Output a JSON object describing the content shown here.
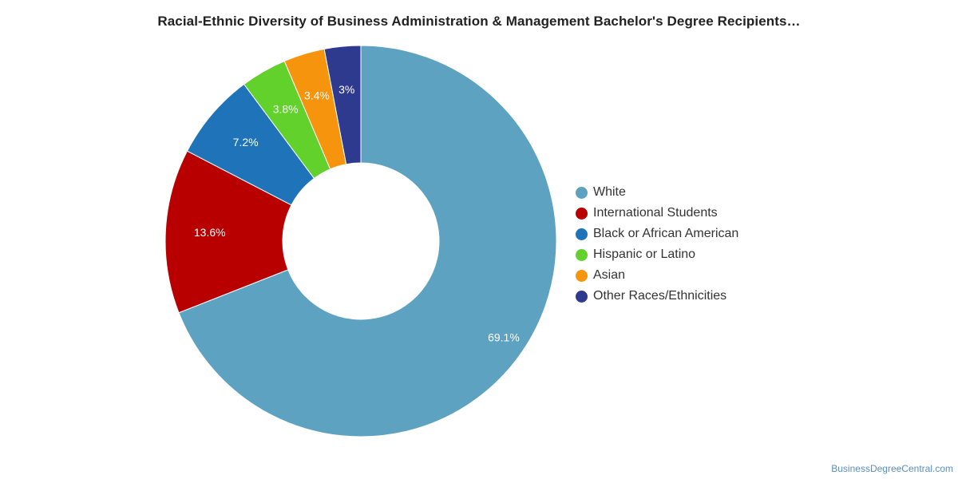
{
  "chart_data": {
    "type": "pie",
    "donut": true,
    "title": "Racial-Ethnic Diversity of Business Administration & Management Bachelor's Degree Recipients…",
    "slices": [
      {
        "label": "White",
        "value": 69.1,
        "display": "69.1%",
        "color": "#5ea2c1"
      },
      {
        "label": "International Students",
        "value": 13.6,
        "display": "13.6%",
        "color": "#b90000"
      },
      {
        "label": "Black or African American",
        "value": 7.2,
        "display": "7.2%",
        "color": "#1f73b8"
      },
      {
        "label": "Hispanic or Latino",
        "value": 3.8,
        "display": "3.8%",
        "color": "#63d12c"
      },
      {
        "label": "Asian",
        "value": 3.4,
        "display": "3.4%",
        "color": "#f7940e"
      },
      {
        "label": "Other Races/Ethnicities",
        "value": 3.0,
        "display": "3%",
        "color": "#2d3a8e"
      }
    ],
    "legend_position": "right"
  },
  "credit": "BusinessDegreeCentral.com"
}
